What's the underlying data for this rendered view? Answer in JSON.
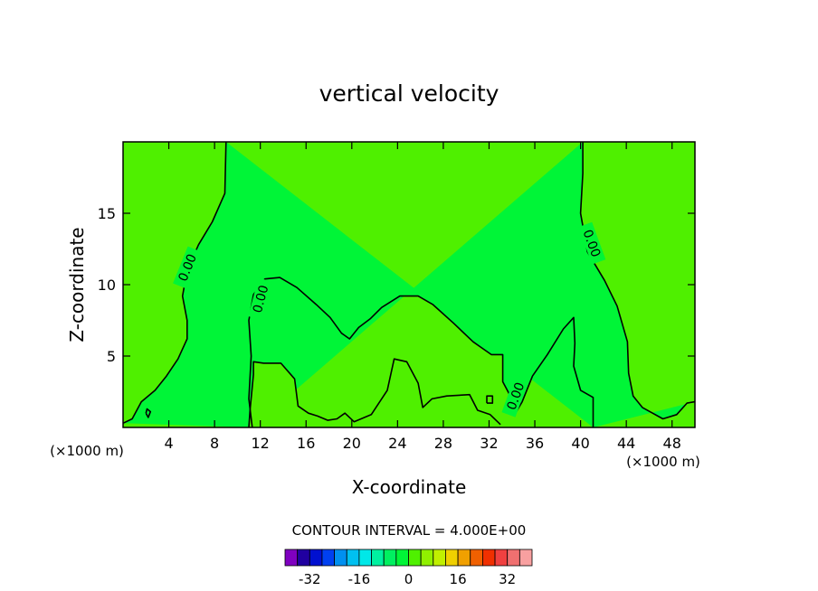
{
  "chart_data": {
    "type": "heatmap",
    "title": "vertical velocity",
    "xlabel": "X-coordinate",
    "ylabel": "Z-coordinate",
    "x_unit_left": "(×1000 m)",
    "x_unit_right": "(×1000 m)",
    "xlim": [
      0,
      50
    ],
    "ylim": [
      0,
      20
    ],
    "x_ticks": [
      4,
      8,
      12,
      16,
      20,
      24,
      28,
      32,
      36,
      40,
      44,
      48
    ],
    "y_ticks": [
      5,
      10,
      15
    ],
    "grid": false,
    "contour_label": "0.00",
    "contour_interval_label": "CONTOUR INTERVAL = 4.000E+00",
    "field_colors": {
      "positive": "#4ff000",
      "negative": "#00f537",
      "line": "#000000"
    },
    "colorbar": {
      "ticks": [
        "-32",
        "-16",
        "0",
        "16",
        "32"
      ],
      "tick_values": [
        -32,
        -16,
        0,
        16,
        32
      ],
      "range": [
        -40,
        40
      ],
      "colors": [
        "#7f00c0",
        "#2000a0",
        "#0010d0",
        "#0040f0",
        "#0090f0",
        "#00c0f0",
        "#00e8e8",
        "#00f0a0",
        "#00f060",
        "#00f537",
        "#4ff000",
        "#90f000",
        "#c0f000",
        "#f0d000",
        "#f0a000",
        "#f06000",
        "#f03000",
        "#f04040",
        "#f07070",
        "#f8a0a0"
      ]
    },
    "zero_contours": [
      [
        [
          0,
          0.3
        ],
        [
          0.8,
          0.6
        ],
        [
          1.6,
          1.8
        ],
        [
          2.8,
          2.6
        ],
        [
          3.8,
          3.6
        ],
        [
          4.8,
          4.8
        ],
        [
          5.6,
          6.2
        ],
        [
          5.6,
          7.5
        ],
        [
          5.2,
          9.2
        ],
        [
          5.6,
          11.0
        ],
        [
          6.6,
          12.8
        ],
        [
          7.8,
          14.4
        ],
        [
          8.9,
          16.4
        ],
        [
          9.0,
          20
        ]
      ],
      [
        [
          11.0,
          0
        ],
        [
          11.1,
          1.2
        ],
        [
          11.4,
          3.7
        ],
        [
          11.4,
          4.6
        ],
        [
          12.3,
          4.5
        ],
        [
          13.8,
          4.5
        ],
        [
          15.0,
          3.4
        ],
        [
          15.3,
          1.5
        ],
        [
          16.2,
          1.0
        ],
        [
          17.0,
          0.8
        ],
        [
          17.9,
          0.5
        ],
        [
          18.7,
          0.6
        ],
        [
          19.4,
          1.0
        ],
        [
          20.2,
          0.4
        ],
        [
          21.7,
          0.9
        ],
        [
          23.1,
          2.6
        ],
        [
          23.7,
          4.8
        ],
        [
          24.8,
          4.6
        ],
        [
          25.8,
          3.1
        ],
        [
          26.2,
          1.4
        ],
        [
          27.0,
          2.0
        ],
        [
          28.3,
          2.2
        ],
        [
          30.3,
          2.3
        ],
        [
          31.0,
          1.2
        ],
        [
          32.1,
          0.9
        ],
        [
          33.0,
          0.2
        ]
      ],
      [
        [
          11.3,
          0
        ],
        [
          11.0,
          2.0
        ],
        [
          11.2,
          5.0
        ],
        [
          11.0,
          7.5
        ],
        [
          11.4,
          9.3
        ],
        [
          12.4,
          10.4
        ],
        [
          13.7,
          10.5
        ],
        [
          15.2,
          9.8
        ],
        [
          16.9,
          8.6
        ],
        [
          18.1,
          7.7
        ],
        [
          19.1,
          6.6
        ],
        [
          19.8,
          6.2
        ],
        [
          20.6,
          7.0
        ],
        [
          21.6,
          7.6
        ],
        [
          22.6,
          8.4
        ],
        [
          24.2,
          9.2
        ],
        [
          25.8,
          9.2
        ],
        [
          27.1,
          8.6
        ],
        [
          28.9,
          7.3
        ],
        [
          30.6,
          6.0
        ],
        [
          32.2,
          5.1
        ],
        [
          33.2,
          5.1
        ],
        [
          33.2,
          3.2
        ],
        [
          33.8,
          2.3
        ],
        [
          34.3,
          1.0
        ],
        [
          34.9,
          1.8
        ],
        [
          35.8,
          3.6
        ],
        [
          37.1,
          5.1
        ],
        [
          38.5,
          6.9
        ],
        [
          39.4,
          7.7
        ],
        [
          39.5,
          5.9
        ],
        [
          39.4,
          4.3
        ],
        [
          40.0,
          2.6
        ],
        [
          41.1,
          2.1
        ],
        [
          41.1,
          0
        ]
      ],
      [
        [
          40.2,
          20
        ],
        [
          40.2,
          17.8
        ],
        [
          40.0,
          15.0
        ],
        [
          40.6,
          12.3
        ],
        [
          42.1,
          10.3
        ],
        [
          43.2,
          8.5
        ],
        [
          44.1,
          6.0
        ],
        [
          44.2,
          3.8
        ],
        [
          44.6,
          2.2
        ],
        [
          45.4,
          1.4
        ],
        [
          46.3,
          1.0
        ],
        [
          47.2,
          0.6
        ],
        [
          48.4,
          0.9
        ],
        [
          49.3,
          1.7
        ],
        [
          50,
          1.8
        ]
      ],
      [
        [
          2.0,
          1.0
        ],
        [
          2.2,
          0.7
        ],
        [
          2.4,
          1.1
        ],
        [
          2.1,
          1.3
        ],
        [
          2.0,
          1.0
        ]
      ],
      [
        [
          31.8,
          1.7
        ],
        [
          32.3,
          1.7
        ],
        [
          32.3,
          2.2
        ],
        [
          31.8,
          2.2
        ],
        [
          31.8,
          1.7
        ]
      ]
    ],
    "contour_label_positions": [
      {
        "x": 5.6,
        "y": 11.2,
        "angle": -68
      },
      {
        "x": 12.0,
        "y": 9.0,
        "angle": -75
      },
      {
        "x": 34.3,
        "y": 2.2,
        "angle": -70
      },
      {
        "x": 41.0,
        "y": 12.9,
        "angle": 70
      }
    ]
  }
}
